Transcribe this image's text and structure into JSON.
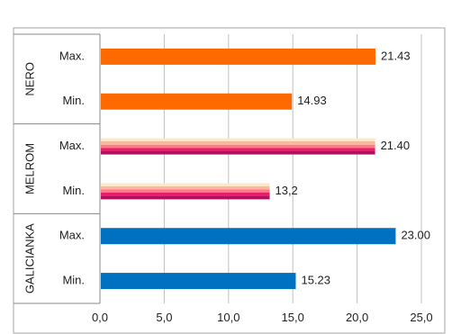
{
  "chart_data": {
    "type": "bar",
    "orientation": "horizontal",
    "groups": [
      {
        "name": "NERO",
        "bars": [
          {
            "category": "Max.",
            "value": 21.43,
            "label": "21.43",
            "fill": "solid-orange"
          },
          {
            "category": "Min.",
            "value": 14.93,
            "label": "14.93",
            "fill": "solid-orange"
          }
        ]
      },
      {
        "name": "MELROM",
        "bars": [
          {
            "category": "Max.",
            "value": 21.4,
            "label": "21.40",
            "fill": "striped"
          },
          {
            "category": "Min.",
            "value": 13.2,
            "label": "13,2",
            "fill": "striped"
          }
        ]
      },
      {
        "name": "GALICIANKA",
        "bars": [
          {
            "category": "Max.",
            "value": 23.0,
            "label": "23.00",
            "fill": "solid-blue"
          },
          {
            "category": "Min.",
            "value": 15.23,
            "label": "15.23",
            "fill": "solid-blue"
          }
        ]
      }
    ],
    "xlim": [
      0,
      25
    ],
    "x_ticks": [
      "0,0",
      "5,0",
      "10,0",
      "15,0",
      "20,0",
      "25,0"
    ],
    "grid": "vertical",
    "legend": "none",
    "colors": {
      "orange": "#ff6a00",
      "blue": "#0070c0",
      "stripes": [
        "#ffe8c8",
        "#ffb6a0",
        "#ff7a8a",
        "#e8206a",
        "#b01060"
      ],
      "grid": "#c0c0c0",
      "axis": "#888888"
    }
  }
}
